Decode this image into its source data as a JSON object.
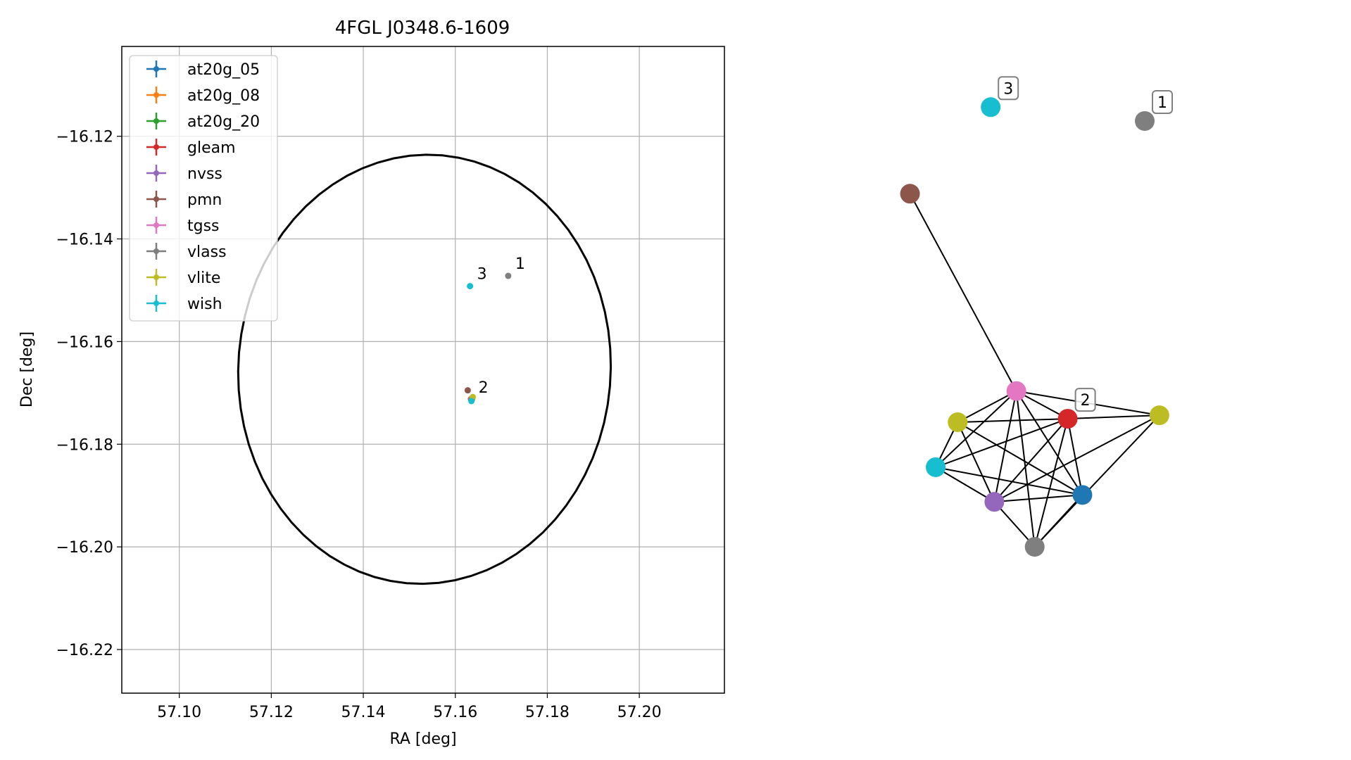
{
  "chart_data": [
    {
      "type": "scatter",
      "title": "4FGL J0348.6-1609",
      "xlabel": "RA [deg]",
      "ylabel": "Dec [deg]",
      "xlim": [
        57.0875,
        57.2185
      ],
      "ylim": [
        -16.2285,
        -16.1025
      ],
      "xticks": [
        57.1,
        57.12,
        57.14,
        57.16,
        57.18,
        57.2
      ],
      "xtick_labels": [
        "57.10",
        "57.12",
        "57.14",
        "57.16",
        "57.18",
        "57.20"
      ],
      "yticks": [
        -16.12,
        -16.14,
        -16.16,
        -16.18,
        -16.2,
        -16.22
      ],
      "ytick_labels": [
        "−16.12",
        "−16.14",
        "−16.16",
        "−16.18",
        "−16.20",
        "−16.22"
      ],
      "grid": true,
      "legend_position": "top-left",
      "series": [
        {
          "name": "at20g_05",
          "color": "#1f77b4",
          "points": [
            [
              57.1635,
              -16.1713
            ]
          ]
        },
        {
          "name": "at20g_08",
          "color": "#ff7f0e",
          "points": [
            [
              57.1636,
              -16.1712
            ]
          ]
        },
        {
          "name": "at20g_20",
          "color": "#2ca02c",
          "points": [
            [
              57.1636,
              -16.1713
            ]
          ]
        },
        {
          "name": "gleam",
          "color": "#d62728",
          "points": [
            [
              57.1634,
              -16.1712
            ]
          ]
        },
        {
          "name": "nvss",
          "color": "#9467bd",
          "points": [
            [
              57.1635,
              -16.1714
            ]
          ]
        },
        {
          "name": "pmn",
          "color": "#8c564b",
          "points": [
            [
              57.1627,
              -16.1695
            ]
          ]
        },
        {
          "name": "tgss",
          "color": "#e377c2",
          "points": [
            [
              57.1635,
              -16.1711
            ]
          ]
        },
        {
          "name": "vlass",
          "color": "#7f7f7f",
          "points": [
            [
              57.1635,
              -16.1713
            ],
            [
              57.1715,
              -16.1472
            ]
          ]
        },
        {
          "name": "vlite",
          "color": "#bcbd22",
          "points": [
            [
              57.1638,
              -16.1708
            ]
          ]
        },
        {
          "name": "wish",
          "color": "#17becf",
          "points": [
            [
              57.1635,
              -16.1716
            ],
            [
              57.1632,
              -16.1492
            ]
          ]
        }
      ],
      "annotations": [
        {
          "text": "1",
          "x": 57.1715,
          "y": -16.1472
        },
        {
          "text": "2",
          "x": 57.1635,
          "y": -16.1713
        },
        {
          "text": "3",
          "x": 57.1632,
          "y": -16.1492
        }
      ],
      "error_ellipse": {
        "center": [
          57.1533,
          -16.1654
        ],
        "semi_axes": [
          0.0419,
          0.0404
        ],
        "angle_deg": 75
      }
    },
    {
      "type": "network",
      "nodes": [
        {
          "id": "vlass_1",
          "color": "#7f7f7f",
          "label": "1",
          "pos": [
            0.62,
            0.13
          ]
        },
        {
          "id": "wish_3",
          "color": "#17becf",
          "label": "3",
          "pos": [
            0.2,
            0.09
          ]
        },
        {
          "id": "pmn",
          "color": "#8c564b",
          "label": "",
          "pos": [
            -0.02,
            0.34
          ]
        },
        {
          "id": "tgss",
          "color": "#e377c2",
          "label": "",
          "pos": [
            0.27,
            0.91
          ]
        },
        {
          "id": "vlite",
          "color": "#bcbd22",
          "label": "",
          "pos": [
            0.11,
            1.0
          ]
        },
        {
          "id": "gleam",
          "color": "#d62728",
          "label": "2",
          "pos": [
            0.41,
            0.99
          ]
        },
        {
          "id": "vlite_b",
          "color": "#bcbd22",
          "label": "",
          "pos": [
            0.66,
            0.98
          ]
        },
        {
          "id": "wish",
          "color": "#17becf",
          "label": "",
          "pos": [
            0.05,
            1.13
          ]
        },
        {
          "id": "nvss",
          "color": "#9467bd",
          "label": "",
          "pos": [
            0.21,
            1.23
          ]
        },
        {
          "id": "at20g_05",
          "color": "#1f77b4",
          "label": "",
          "pos": [
            0.45,
            1.21
          ]
        },
        {
          "id": "vlass",
          "color": "#7f7f7f",
          "label": "",
          "pos": [
            0.32,
            1.36
          ]
        }
      ],
      "edges": [
        [
          "pmn",
          "tgss"
        ],
        [
          "tgss",
          "vlite"
        ],
        [
          "tgss",
          "gleam"
        ],
        [
          "tgss",
          "vlite_b"
        ],
        [
          "tgss",
          "wish"
        ],
        [
          "tgss",
          "nvss"
        ],
        [
          "tgss",
          "at20g_05"
        ],
        [
          "tgss",
          "vlass"
        ],
        [
          "vlite",
          "gleam"
        ],
        [
          "vlite",
          "wish"
        ],
        [
          "vlite",
          "nvss"
        ],
        [
          "vlite",
          "at20g_05"
        ],
        [
          "gleam",
          "vlite_b"
        ],
        [
          "gleam",
          "wish"
        ],
        [
          "gleam",
          "nvss"
        ],
        [
          "gleam",
          "at20g_05"
        ],
        [
          "gleam",
          "vlass"
        ],
        [
          "vlite_b",
          "nvss"
        ],
        [
          "vlite_b",
          "vlass"
        ],
        [
          "wish",
          "nvss"
        ],
        [
          "wish",
          "at20g_05"
        ],
        [
          "nvss",
          "at20g_05"
        ],
        [
          "nvss",
          "vlass"
        ],
        [
          "at20g_05",
          "vlass"
        ]
      ]
    }
  ]
}
